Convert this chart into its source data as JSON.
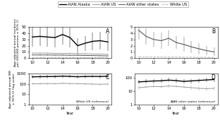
{
  "years": [
    2010,
    2011,
    2012,
    2013,
    2014,
    2015,
    2016,
    2017,
    2018,
    2019,
    2020
  ],
  "panel_A": {
    "AIAN_Alaska": [
      34,
      35,
      34,
      33,
      38,
      33,
      20,
      24,
      27,
      28,
      26
    ],
    "AIAN_Alaska_lo": [
      18,
      19,
      18,
      17,
      22,
      17,
      8,
      12,
      13,
      14,
      12
    ],
    "AIAN_Alaska_hi": [
      50,
      51,
      50,
      49,
      54,
      49,
      32,
      36,
      41,
      42,
      40
    ],
    "AIAN_US": [
      8.0,
      8.0,
      8.0,
      7.5,
      7.5,
      7.5,
      7.0,
      7.0,
      6.5,
      6.5,
      6.0
    ],
    "AIAN_US_lo": [
      7.0,
      7.0,
      7.0,
      6.5,
      6.5,
      6.5,
      6.0,
      6.0,
      5.5,
      5.5,
      5.0
    ],
    "AIAN_US_hi": [
      9.0,
      9.0,
      9.0,
      8.5,
      8.5,
      8.5,
      8.0,
      8.0,
      7.5,
      7.5,
      7.0
    ],
    "AIAN_other": [
      5.0,
      5.0,
      5.0,
      4.8,
      4.8,
      4.5,
      4.5,
      4.2,
      4.0,
      3.8,
      3.5
    ],
    "AIAN_other_lo": [
      4.0,
      4.0,
      4.0,
      3.8,
      3.8,
      3.5,
      3.5,
      3.2,
      3.0,
      2.8,
      2.5
    ],
    "AIAN_other_hi": [
      6.0,
      6.0,
      6.0,
      5.8,
      5.8,
      5.5,
      5.5,
      5.2,
      5.0,
      4.8,
      4.5
    ],
    "White_US": [
      1.1,
      1.0,
      1.0,
      0.95,
      0.9,
      0.9,
      0.85,
      0.8,
      0.75,
      0.7,
      0.65
    ],
    "White_US_lo": [
      1.0,
      0.9,
      0.9,
      0.85,
      0.8,
      0.8,
      0.75,
      0.7,
      0.65,
      0.6,
      0.55
    ],
    "White_US_hi": [
      1.2,
      1.1,
      1.1,
      1.05,
      1.0,
      1.0,
      0.95,
      0.9,
      0.85,
      0.8,
      0.75
    ],
    "ylim": [
      0,
      50
    ],
    "yticks": [
      0,
      10,
      20,
      30,
      40,
      50
    ],
    "ylabel": "Age-adjusted annual incidence\nper 100,000 persons ± 95% CI"
  },
  "panel_B": {
    "AIAN_other": [
      4.5,
      3.5,
      3.0,
      2.8,
      3.2,
      2.5,
      2.2,
      1.8,
      1.5,
      1.2,
      1.0
    ],
    "AIAN_other_lo": [
      3.0,
      2.2,
      1.8,
      1.5,
      2.0,
      1.5,
      1.0,
      0.8,
      0.6,
      0.5,
      0.3
    ],
    "AIAN_other_hi": [
      6.0,
      4.8,
      4.2,
      4.1,
      4.5,
      3.5,
      3.4,
      2.8,
      2.4,
      1.9,
      1.7
    ],
    "White_US": [
      0.22,
      0.2,
      0.19,
      0.18,
      0.17,
      0.16,
      0.15,
      0.14,
      0.13,
      0.12,
      0.11
    ],
    "White_US_lo": [
      0.18,
      0.17,
      0.16,
      0.15,
      0.14,
      0.13,
      0.12,
      0.11,
      0.1,
      0.09,
      0.08
    ],
    "White_US_hi": [
      0.26,
      0.23,
      0.22,
      0.21,
      0.2,
      0.19,
      0.18,
      0.17,
      0.16,
      0.15,
      0.14
    ],
    "ylim": [
      0,
      5
    ],
    "yticks": [
      0,
      1,
      2,
      3,
      4,
      5
    ],
    "ylabel": ""
  },
  "panel_C": {
    "AIAN_Alaska": [
      480,
      500,
      510,
      520,
      560,
      530,
      490,
      520,
      530,
      520,
      550
    ],
    "AIAN_Alaska_lo": [
      320,
      340,
      350,
      360,
      400,
      370,
      330,
      360,
      370,
      360,
      390
    ],
    "AIAN_Alaska_hi": [
      700,
      720,
      730,
      740,
      790,
      760,
      710,
      740,
      750,
      740,
      770
    ],
    "AIAN_US": [
      100,
      105,
      108,
      106,
      112,
      108,
      104,
      100,
      96,
      92,
      96
    ],
    "AIAN_US_lo": [
      78,
      82,
      85,
      83,
      89,
      85,
      81,
      78,
      74,
      70,
      74
    ],
    "AIAN_US_hi": [
      128,
      134,
      137,
      135,
      141,
      137,
      133,
      128,
      124,
      120,
      124
    ],
    "ylim_log": [
      1,
      1000
    ],
    "yticks_log": [
      1,
      10,
      100,
      1000
    ],
    "ylabel": "Age-adjusted annual IRR\n± 95% CI (log scale)",
    "ref_label": "White US (reference)"
  },
  "panel_D": {
    "AIAN_Alaska": [
      48,
      52,
      56,
      58,
      65,
      60,
      52,
      57,
      62,
      67,
      72
    ],
    "AIAN_Alaska_lo": [
      32,
      35,
      38,
      40,
      46,
      42,
      35,
      39,
      43,
      47,
      50
    ],
    "AIAN_Alaska_hi": [
      70,
      75,
      80,
      82,
      92,
      85,
      75,
      81,
      87,
      93,
      100
    ],
    "AIAN_US": [
      18,
      20,
      22,
      21,
      24,
      22,
      20,
      18,
      16,
      15,
      16
    ],
    "AIAN_US_lo": [
      13,
      15,
      17,
      16,
      18,
      17,
      15,
      13,
      11,
      10,
      11
    ],
    "AIAN_US_hi": [
      25,
      27,
      29,
      28,
      32,
      29,
      27,
      25,
      23,
      22,
      23
    ],
    "ylim_log": [
      1,
      200
    ],
    "yticks_log": [
      1,
      10,
      100
    ],
    "ylabel": "",
    "ref_label": "AIAN other states (reference)"
  },
  "colors": {
    "AIAN_Alaska": "#000000",
    "AIAN_US": "#999999",
    "AIAN_other": "#555555",
    "White_US": "#bbbbbb"
  },
  "legend_labels": [
    "AIAN Alaska",
    "AIAN US",
    "AIAN other states",
    "White US"
  ],
  "xlabel": "Year",
  "background": "#ffffff"
}
